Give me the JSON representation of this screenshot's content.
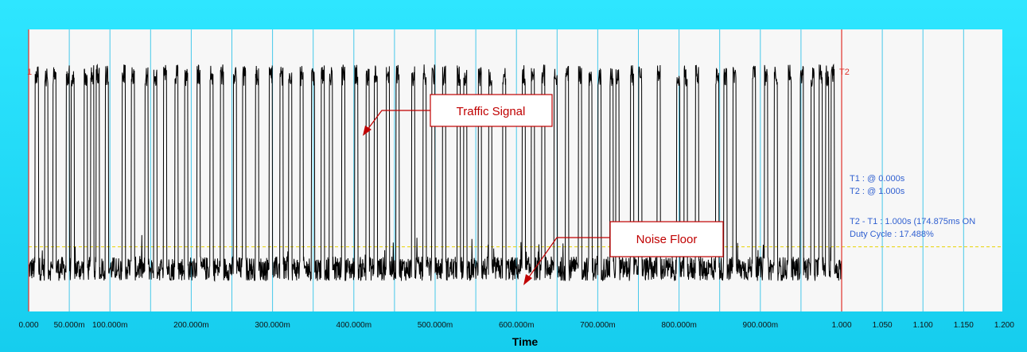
{
  "chart_data": {
    "type": "line",
    "xlabel": "Time",
    "ylabel": "",
    "xlim": [
      0,
      1.2
    ],
    "tick_labels": [
      {
        "value": 0.0,
        "label": "0.000"
      },
      {
        "value": 0.05,
        "label": "50.000m"
      },
      {
        "value": 0.1,
        "label": "100.000m"
      },
      {
        "value": 0.2,
        "label": "200.000m"
      },
      {
        "value": 0.3,
        "label": "300.000m"
      },
      {
        "value": 0.4,
        "label": "400.000m"
      },
      {
        "value": 0.5,
        "label": "500.000m"
      },
      {
        "value": 0.6,
        "label": "600.000m"
      },
      {
        "value": 0.7,
        "label": "700.000m"
      },
      {
        "value": 0.8,
        "label": "800.000m"
      },
      {
        "value": 0.9,
        "label": "900.000m"
      },
      {
        "value": 1.0,
        "label": "1.000"
      },
      {
        "value": 1.05,
        "label": "1.050"
      },
      {
        "value": 1.1,
        "label": "1.100"
      },
      {
        "value": 1.15,
        "label": "1.150"
      },
      {
        "value": 1.2,
        "label": "1.200"
      }
    ],
    "gridlines_x": [
      0.05,
      0.1,
      0.15,
      0.2,
      0.25,
      0.3,
      0.35,
      0.4,
      0.45,
      0.5,
      0.55,
      0.6,
      0.65,
      0.7,
      0.75,
      0.8,
      0.85,
      0.9,
      0.95,
      1.0,
      1.05,
      1.1,
      1.15
    ],
    "grid": true,
    "series": [
      {
        "color": "#000000",
        "noise_level": 0.13,
        "peak_level": 0.97,
        "pulses": [
          [
            0.008,
            0.012
          ],
          [
            0.02,
            0.024
          ],
          [
            0.03,
            0.034
          ],
          [
            0.046,
            0.05
          ],
          [
            0.052,
            0.056
          ],
          [
            0.068,
            0.072
          ],
          [
            0.076,
            0.08
          ],
          [
            0.083,
            0.087
          ],
          [
            0.094,
            0.098
          ],
          [
            0.115,
            0.119
          ],
          [
            0.126,
            0.13
          ],
          [
            0.143,
            0.147
          ],
          [
            0.154,
            0.158
          ],
          [
            0.166,
            0.17
          ],
          [
            0.18,
            0.184
          ],
          [
            0.192,
            0.196
          ],
          [
            0.207,
            0.211
          ],
          [
            0.223,
            0.227
          ],
          [
            0.236,
            0.24
          ],
          [
            0.252,
            0.256
          ],
          [
            0.263,
            0.267
          ],
          [
            0.279,
            0.283
          ],
          [
            0.296,
            0.3
          ],
          [
            0.309,
            0.313
          ],
          [
            0.32,
            0.324
          ],
          [
            0.334,
            0.338
          ],
          [
            0.348,
            0.352
          ],
          [
            0.36,
            0.364
          ],
          [
            0.37,
            0.374
          ],
          [
            0.385,
            0.389
          ],
          [
            0.401,
            0.405
          ],
          [
            0.415,
            0.419
          ],
          [
            0.425,
            0.429
          ],
          [
            0.44,
            0.444
          ],
          [
            0.452,
            0.456
          ],
          [
            0.471,
            0.475
          ],
          [
            0.485,
            0.489
          ],
          [
            0.496,
            0.5
          ],
          [
            0.509,
            0.513
          ],
          [
            0.527,
            0.531
          ],
          [
            0.535,
            0.539
          ],
          [
            0.553,
            0.557
          ],
          [
            0.566,
            0.57
          ],
          [
            0.583,
            0.587
          ],
          [
            0.607,
            0.611
          ],
          [
            0.618,
            0.622
          ],
          [
            0.631,
            0.635
          ],
          [
            0.646,
            0.65
          ],
          [
            0.66,
            0.664
          ],
          [
            0.676,
            0.68
          ],
          [
            0.689,
            0.693
          ],
          [
            0.7,
            0.704
          ],
          [
            0.715,
            0.719
          ],
          [
            0.722,
            0.726
          ],
          [
            0.74,
            0.744
          ],
          [
            0.75,
            0.754
          ],
          [
            0.773,
            0.777
          ],
          [
            0.797,
            0.801
          ],
          [
            0.806,
            0.81
          ],
          [
            0.82,
            0.824
          ],
          [
            0.845,
            0.849
          ],
          [
            0.855,
            0.859
          ],
          [
            0.866,
            0.87
          ],
          [
            0.89,
            0.894
          ],
          [
            0.905,
            0.909
          ],
          [
            0.917,
            0.921
          ],
          [
            0.934,
            0.938
          ],
          [
            0.949,
            0.953
          ],
          [
            0.962,
            0.966
          ],
          [
            0.972,
            0.976
          ],
          [
            0.98,
            0.984
          ],
          [
            0.987,
            0.991
          ]
        ]
      }
    ],
    "threshold": {
      "level": 0.22,
      "color": "#e8d400"
    },
    "cursors": [
      {
        "label": "1",
        "x": 0.0,
        "color": "#e0322c"
      },
      {
        "label": "T2",
        "x": 1.0,
        "color": "#e0322c"
      }
    ],
    "info_lines": [
      "T1 : @ 0.000s",
      "T2 : @ 1.000s",
      "T2 - T1 : 1.000s (174.875ms ON",
      "Duty Cycle : 17.488%"
    ],
    "annotations": [
      {
        "text": "Traffic Signal",
        "target_x": 0.415,
        "target_level": 0.65
      },
      {
        "text": "Noise Floor",
        "target_x": 0.61,
        "target_level": 0.05
      }
    ]
  },
  "colors": {
    "frame": "#1fd6f7",
    "plot_bg": "#f7f7f7",
    "gridline": "#45c8ea",
    "info_text": "#2f5fd0",
    "callout": "#c00000"
  }
}
